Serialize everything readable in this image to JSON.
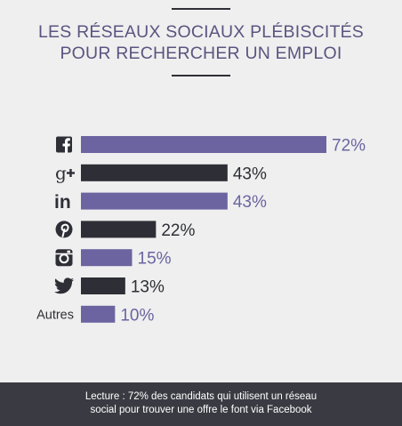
{
  "title_line1": "LES RÉSEAUX SOCIAUX PLÉBISCITÉS",
  "title_line2": "POUR RECHERCHER UN EMPLOI",
  "footer_line1": "Lecture : 72% des candidats qui utilisent un réseau",
  "footer_line2": "social pour trouver une offre le font via Facebook",
  "colors": {
    "purple": "#6b64a0",
    "dark": "#2e2f36",
    "title": "#5b5480",
    "footer_bg": "#3a3b42"
  },
  "chart_data": {
    "type": "bar",
    "orientation": "horizontal",
    "categories": [
      "facebook-icon",
      "google-plus-icon",
      "linkedin-icon",
      "pinterest-icon",
      "instagram-icon",
      "twitter-icon",
      "Autres"
    ],
    "values": [
      72,
      43,
      43,
      22,
      15,
      13,
      10
    ],
    "value_labels": [
      "72%",
      "43%",
      "43%",
      "22%",
      "15%",
      "13%",
      "10%"
    ],
    "bar_colors": [
      "#6b64a0",
      "#2e2f36",
      "#6b64a0",
      "#2e2f36",
      "#6b64a0",
      "#2e2f36",
      "#6b64a0"
    ],
    "xlim": [
      0,
      72
    ],
    "grid": false,
    "legend": "none"
  }
}
